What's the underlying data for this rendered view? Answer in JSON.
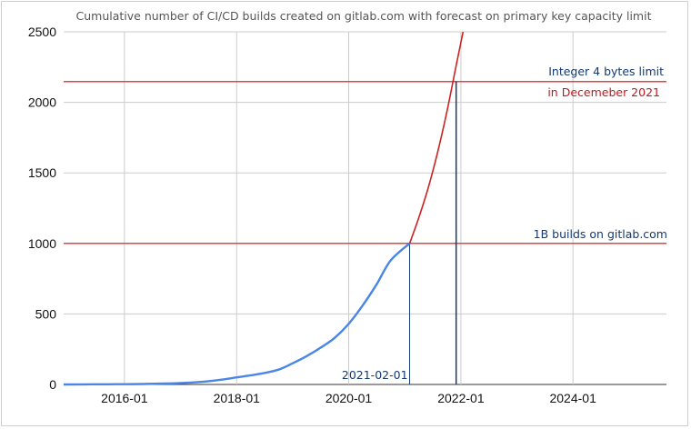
{
  "chart_data": {
    "type": "line",
    "title": "Cumulative number of CI/CD builds created on gitlab.com with forecast on primary key capacity limit",
    "xlabel": "",
    "ylabel": "",
    "xlim": [
      "2014-12-01",
      "2025-09-01"
    ],
    "ylim": [
      0,
      2500
    ],
    "y_ticks": [
      0,
      500,
      1000,
      1500,
      2000,
      2500
    ],
    "x_ticks": [
      "2016-01",
      "2018-01",
      "2020-01",
      "2022-01",
      "2024-01"
    ],
    "grid": true,
    "series": [
      {
        "color": "#4a86e8",
        "x": [
          "2014-12-01",
          "2015-06-01",
          "2016-01-01",
          "2016-06-01",
          "2017-01-01",
          "2017-06-01",
          "2017-10-01",
          "2018-01-01",
          "2018-06-01",
          "2018-10-01",
          "2019-01-01",
          "2019-04-01",
          "2019-07-01",
          "2019-10-01",
          "2020-01-01",
          "2020-04-01",
          "2020-07-01",
          "2020-10-01",
          "2021-02-01"
        ],
        "y": [
          0,
          1,
          2,
          4,
          10,
          20,
          35,
          50,
          75,
          105,
          150,
          200,
          260,
          330,
          430,
          560,
          710,
          880,
          1000
        ]
      },
      {
        "color": "#cc2222",
        "x": [
          "2021-02-01",
          "2021-04-01",
          "2021-06-01",
          "2021-08-01",
          "2021-10-01",
          "2021-12-01",
          "2022-01-15"
        ],
        "y": [
          1000,
          1180,
          1390,
          1640,
          1930,
          2260,
          2500
        ]
      }
    ],
    "reference_lines": [
      {
        "y": 1000,
        "label": "1B builds on gitlab.com",
        "color": "#e04444"
      },
      {
        "y": 2147,
        "label": "Integer 4 bytes limit",
        "sublabel": "in Decemeber 2021",
        "color": "#e04444"
      }
    ],
    "vertical_markers": [
      {
        "x": "2021-02-01",
        "label": "2021-02-01",
        "color": "#123a73"
      },
      {
        "x": "2021-12-01",
        "label": "",
        "color": "#123a73"
      }
    ]
  }
}
